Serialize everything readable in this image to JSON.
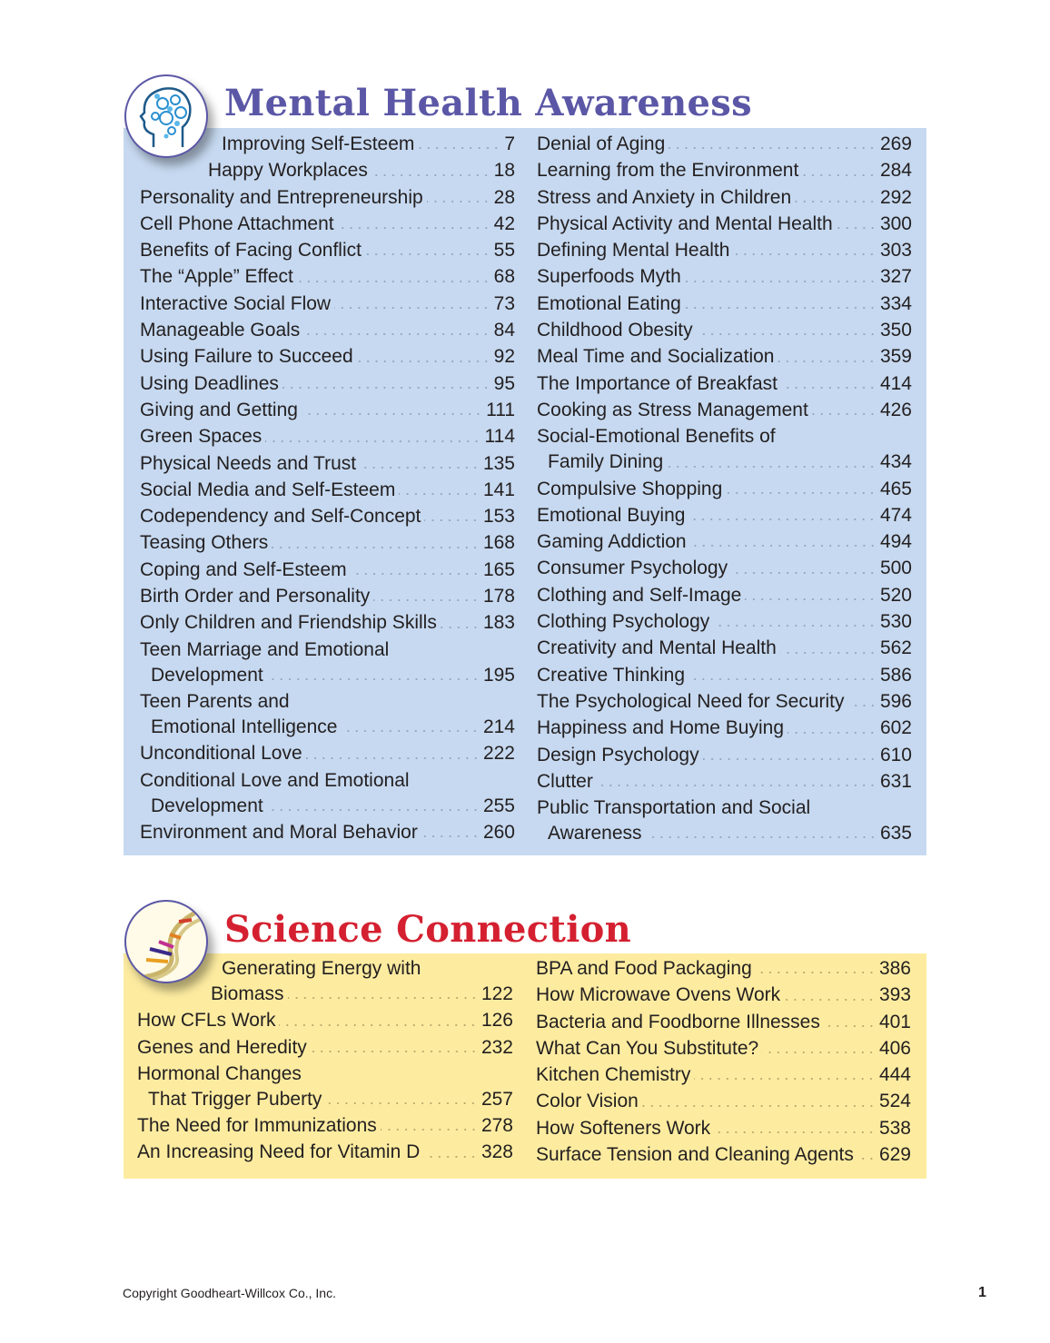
{
  "mental_health": {
    "title": "Mental Health Awareness",
    "icon": "head-gears-icon",
    "color": "#5b57a6",
    "background": "#c6d9f0",
    "left": [
      {
        "title": "Improving Self-Esteem",
        "page": "7"
      },
      {
        "title": "Happy Workplaces",
        "page": "18"
      },
      {
        "title": "Personality and Entrepreneurship",
        "page": "28"
      },
      {
        "title": "Cell Phone Attachment",
        "page": "42"
      },
      {
        "title": "Benefits of Facing Conflict",
        "page": "55"
      },
      {
        "title": "The “Apple” Effect",
        "page": "68"
      },
      {
        "title": "Interactive Social Flow",
        "page": "73"
      },
      {
        "title": "Manageable Goals",
        "page": "84"
      },
      {
        "title": "Using Failure to Succeed",
        "page": "92"
      },
      {
        "title": "Using Deadlines",
        "page": "95"
      },
      {
        "title": "Giving and Getting",
        "page": "111"
      },
      {
        "title": "Green Spaces",
        "page": "114"
      },
      {
        "title": "Physical Needs and Trust",
        "page": "135"
      },
      {
        "title": "Social Media and Self-Esteem",
        "page": "141"
      },
      {
        "title": "Codependency and Self-Concept",
        "page": "153"
      },
      {
        "title": "Teasing Others",
        "page": "168"
      },
      {
        "title": "Coping and Self-Esteem",
        "page": "165"
      },
      {
        "title": "Birth Order and Personality",
        "page": "178"
      },
      {
        "title": "Only Children and Friendship Skills",
        "page": "183"
      },
      {
        "title": "Teen Marriage and Emotional",
        "title2": "Development",
        "page": "195"
      },
      {
        "title": "Teen Parents and",
        "title2": "Emotional Intelligence",
        "page": "214"
      },
      {
        "title": "Unconditional Love",
        "page": "222"
      },
      {
        "title": "Conditional Love and Emotional",
        "title2": "Development",
        "page": "255"
      },
      {
        "title": "Environment and Moral Behavior",
        "page": "260"
      }
    ],
    "right": [
      {
        "title": "Denial of Aging",
        "page": "269"
      },
      {
        "title": "Learning from the Environment",
        "page": "284"
      },
      {
        "title": "Stress and Anxiety in Children",
        "page": "292"
      },
      {
        "title": "Physical Activity and Mental Health",
        "page": "300"
      },
      {
        "title": "Defining Mental Health",
        "page": "303"
      },
      {
        "title": "Superfoods Myth",
        "page": "327"
      },
      {
        "title": "Emotional Eating",
        "page": "334"
      },
      {
        "title": "Childhood Obesity",
        "page": "350"
      },
      {
        "title": "Meal Time and Socialization",
        "page": "359"
      },
      {
        "title": "The Importance of Breakfast",
        "page": "414"
      },
      {
        "title": "Cooking as Stress Management",
        "page": "426"
      },
      {
        "title": "Social-Emotional Benefits of",
        "title2": "Family Dining",
        "page": "434"
      },
      {
        "title": "Compulsive Shopping",
        "page": "465"
      },
      {
        "title": "Emotional Buying",
        "page": "474"
      },
      {
        "title": "Gaming Addiction",
        "page": "494"
      },
      {
        "title": "Consumer Psychology",
        "page": "500"
      },
      {
        "title": "Clothing and Self-Image",
        "page": "520"
      },
      {
        "title": "Clothing Psychology",
        "page": "530"
      },
      {
        "title": "Creativity and Mental Health",
        "page": "562"
      },
      {
        "title": "Creative Thinking",
        "page": "586"
      },
      {
        "title": "The Psychological Need for Security",
        "page": "596"
      },
      {
        "title": "Happiness and Home Buying",
        "page": "602"
      },
      {
        "title": "Design Psychology",
        "page": "610"
      },
      {
        "title": "Clutter",
        "page": "631"
      },
      {
        "title": "Public Transportation and Social",
        "title2": "Awareness",
        "page": "635"
      }
    ]
  },
  "science": {
    "title": "Science Connection",
    "icon": "dna-helix-icon",
    "color": "#d42030",
    "background": "#fdeca0",
    "left": [
      {
        "title": "Generating Energy with",
        "title2": "Biomass",
        "page": "122"
      },
      {
        "title": "How CFLs Work",
        "page": "126"
      },
      {
        "title": "Genes and Heredity",
        "page": "232"
      },
      {
        "title": "Hormonal Changes",
        "title2": "That Trigger Puberty",
        "page": "257"
      },
      {
        "title": "The Need for Immunizations",
        "page": "278"
      },
      {
        "title": "An Increasing Need for Vitamin D",
        "page": "328"
      }
    ],
    "right": [
      {
        "title": "BPA and Food Packaging",
        "page": "386"
      },
      {
        "title": "How Microwave Ovens Work",
        "page": "393"
      },
      {
        "title": "Bacteria and Foodborne Illnesses",
        "page": "401"
      },
      {
        "title": "What Can You Substitute?",
        "page": "406"
      },
      {
        "title": "Kitchen Chemistry",
        "page": "444"
      },
      {
        "title": "Color Vision",
        "page": "524"
      },
      {
        "title": "How Softeners Work",
        "page": "538"
      },
      {
        "title": "Surface Tension and Cleaning Agents",
        "page": "629"
      }
    ]
  },
  "footer": {
    "copyright": "Copyright Goodheart-Willcox Co., Inc.",
    "page_number": "1"
  }
}
